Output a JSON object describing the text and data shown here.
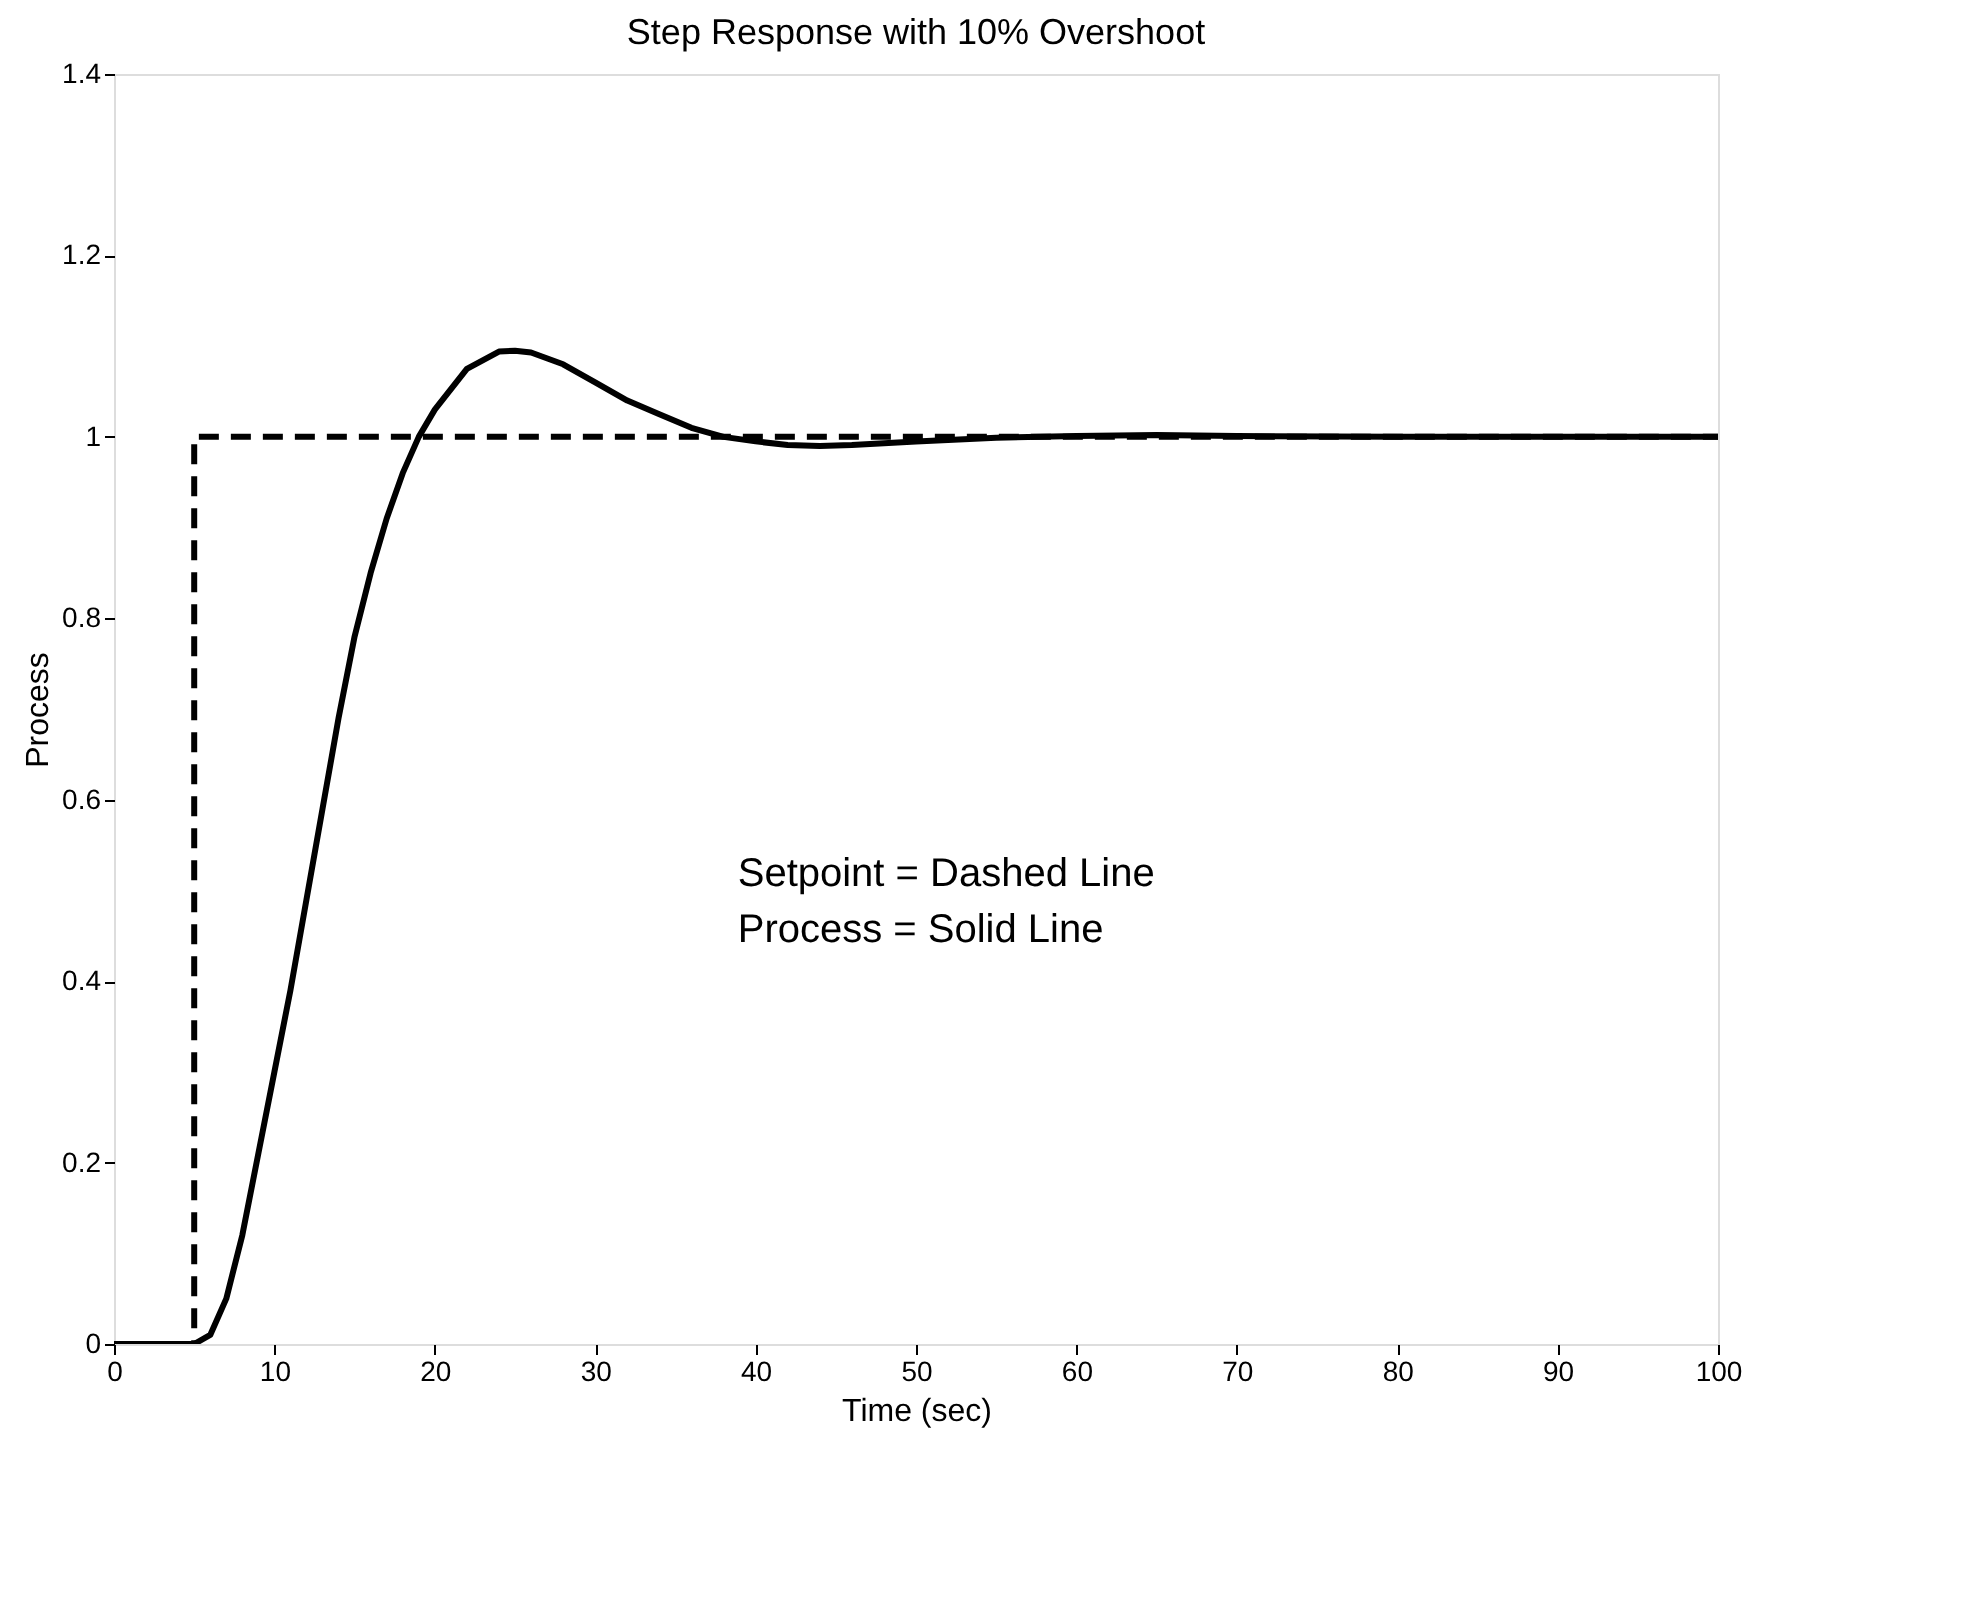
{
  "chart_data": {
    "type": "line",
    "title": "Step Response with 10% Overshoot",
    "xlabel": "Time (sec)",
    "ylabel": "Process",
    "xlim": [
      0,
      100
    ],
    "xticks": [
      0,
      10,
      20,
      30,
      40,
      50,
      60,
      70,
      80,
      90,
      100
    ],
    "ylim": [
      0,
      1.4
    ],
    "yticks": [
      0,
      0.2,
      0.4,
      0.6,
      0.8,
      1,
      1.2,
      1.4
    ],
    "grid": false,
    "annotations": [
      "Setpoint = Dashed Line",
      "Process = Solid Line"
    ],
    "series": [
      {
        "color": "#000000",
        "line_style": "dashed",
        "x": [
          0,
          5,
          5,
          100
        ],
        "values": [
          0,
          0,
          1,
          1
        ]
      },
      {
        "color": "#000000",
        "line_style": "solid",
        "x": [
          0,
          5,
          6,
          7,
          8,
          9,
          10,
          11,
          12,
          13,
          14,
          15,
          16,
          17,
          18,
          19,
          20,
          22,
          24,
          25,
          26,
          28,
          30,
          32,
          34,
          36,
          38,
          40,
          42,
          44,
          46,
          48,
          50,
          55,
          60,
          65,
          70,
          80,
          90,
          100
        ],
        "values": [
          0,
          0,
          0.01,
          0.05,
          0.12,
          0.21,
          0.3,
          0.39,
          0.49,
          0.59,
          0.69,
          0.78,
          0.85,
          0.91,
          0.96,
          1.0,
          1.03,
          1.075,
          1.094,
          1.095,
          1.093,
          1.08,
          1.06,
          1.04,
          1.025,
          1.01,
          1.0,
          0.995,
          0.991,
          0.99,
          0.991,
          0.993,
          0.995,
          0.999,
          1.001,
          1.002,
          1.001,
          1.0,
          1.0,
          1.0
        ]
      }
    ]
  }
}
